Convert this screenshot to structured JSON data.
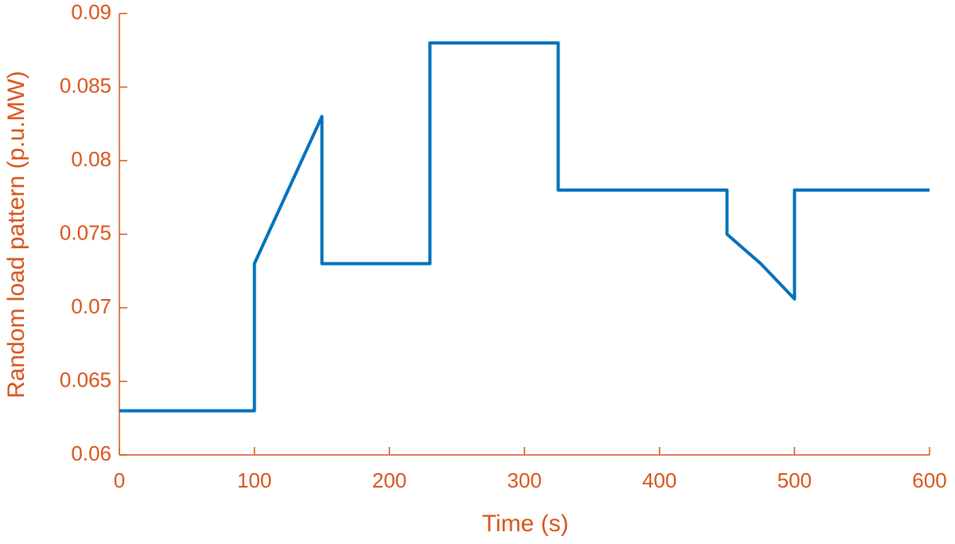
{
  "chart_data": {
    "type": "line",
    "x_label": "Time (s)",
    "y_label": "Random load pattern (p.u.MW)",
    "x": [
      0,
      100,
      100,
      150,
      150,
      230,
      230,
      325,
      325,
      450,
      450,
      475,
      500,
      500,
      600
    ],
    "series": [
      {
        "color": "#0072bd",
        "values": [
          0.063,
          0.063,
          0.073,
          0.083,
          0.073,
          0.073,
          0.088,
          0.088,
          0.078,
          0.078,
          0.075,
          0.073,
          0.0706,
          0.078,
          0.078
        ]
      }
    ],
    "axis_color": "#d95319",
    "xlim": [
      0,
      600
    ],
    "xticks": [
      0,
      100,
      200,
      300,
      400,
      500,
      600
    ],
    "ylim": [
      0.06,
      0.09
    ],
    "yticks": [
      0.06,
      0.065,
      0.07,
      0.075,
      0.08,
      0.085,
      0.09
    ],
    "grid": false
  }
}
